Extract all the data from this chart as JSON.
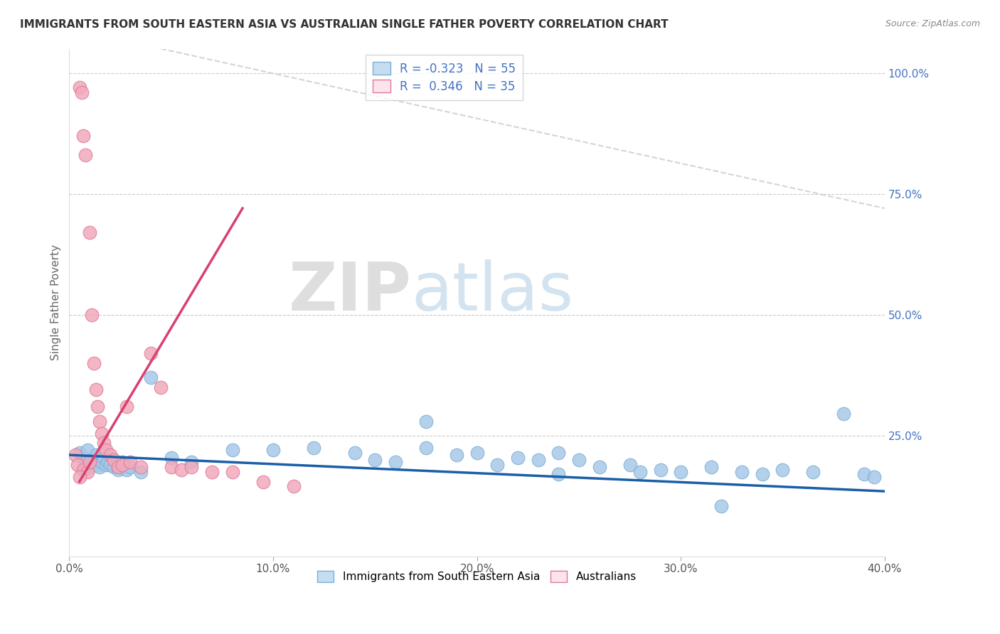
{
  "title": "IMMIGRANTS FROM SOUTH EASTERN ASIA VS AUSTRALIAN SINGLE FATHER POVERTY CORRELATION CHART",
  "source": "Source: ZipAtlas.com",
  "ylabel": "Single Father Poverty",
  "xlim": [
    0.0,
    0.4
  ],
  "ylim": [
    0.0,
    1.05
  ],
  "xtick_labels": [
    "0.0%",
    "10.0%",
    "20.0%",
    "30.0%",
    "40.0%"
  ],
  "xtick_vals": [
    0.0,
    0.1,
    0.2,
    0.3,
    0.4
  ],
  "ytick_right_labels": [
    "25.0%",
    "50.0%",
    "75.0%",
    "100.0%"
  ],
  "ytick_right_vals": [
    0.25,
    0.5,
    0.75,
    1.0
  ],
  "blue_color": "#a8c8e8",
  "blue_edge": "#7bafd4",
  "blue_fill": "#c5ddf0",
  "pink_color": "#f0aabb",
  "pink_edge": "#e07898",
  "pink_fill": "#fce4ec",
  "blue_line_color": "#1a5fa8",
  "pink_line_color": "#d94070",
  "ref_line_color": "#d0d0d0",
  "R_blue": -0.323,
  "N_blue": 55,
  "R_pink": 0.346,
  "N_pink": 35,
  "legend_label_blue": "Immigrants from South Eastern Asia",
  "legend_label_pink": "Australians",
  "watermark_zip": "ZIP",
  "watermark_atlas": "atlas",
  "blue_line_x0": 0.0,
  "blue_line_y0": 0.21,
  "blue_line_x1": 0.4,
  "blue_line_y1": 0.135,
  "pink_line_x0": 0.005,
  "pink_line_y0": 0.155,
  "pink_line_x1": 0.085,
  "pink_line_y1": 0.72,
  "ref_line_x0": 0.045,
  "ref_line_y0": 1.05,
  "ref_line_x1": 0.4,
  "ref_line_y1": 0.72,
  "blue_x": [
    0.005,
    0.007,
    0.008,
    0.009,
    0.01,
    0.011,
    0.012,
    0.013,
    0.014,
    0.015,
    0.016,
    0.017,
    0.018,
    0.019,
    0.02,
    0.022,
    0.024,
    0.025,
    0.026,
    0.028,
    0.03,
    0.035,
    0.04,
    0.05,
    0.06,
    0.08,
    0.1,
    0.12,
    0.14,
    0.15,
    0.16,
    0.175,
    0.19,
    0.2,
    0.21,
    0.22,
    0.23,
    0.24,
    0.25,
    0.26,
    0.275,
    0.29,
    0.3,
    0.315,
    0.33,
    0.34,
    0.35,
    0.365,
    0.38,
    0.39,
    0.395,
    0.28,
    0.175,
    0.32,
    0.24
  ],
  "blue_y": [
    0.215,
    0.205,
    0.195,
    0.22,
    0.185,
    0.2,
    0.195,
    0.21,
    0.19,
    0.185,
    0.195,
    0.205,
    0.19,
    0.195,
    0.19,
    0.185,
    0.18,
    0.185,
    0.195,
    0.18,
    0.185,
    0.175,
    0.37,
    0.205,
    0.195,
    0.22,
    0.22,
    0.225,
    0.215,
    0.2,
    0.195,
    0.225,
    0.21,
    0.215,
    0.19,
    0.205,
    0.2,
    0.215,
    0.2,
    0.185,
    0.19,
    0.18,
    0.175,
    0.185,
    0.175,
    0.17,
    0.18,
    0.175,
    0.295,
    0.17,
    0.165,
    0.175,
    0.28,
    0.105,
    0.17
  ],
  "pink_x": [
    0.003,
    0.004,
    0.005,
    0.006,
    0.007,
    0.007,
    0.008,
    0.009,
    0.01,
    0.01,
    0.011,
    0.012,
    0.013,
    0.014,
    0.015,
    0.016,
    0.017,
    0.018,
    0.02,
    0.022,
    0.024,
    0.026,
    0.028,
    0.03,
    0.035,
    0.04,
    0.045,
    0.05,
    0.055,
    0.06,
    0.07,
    0.08,
    0.095,
    0.11,
    0.005
  ],
  "pink_y": [
    0.21,
    0.19,
    0.97,
    0.96,
    0.87,
    0.18,
    0.83,
    0.175,
    0.195,
    0.67,
    0.5,
    0.4,
    0.345,
    0.31,
    0.28,
    0.255,
    0.235,
    0.22,
    0.21,
    0.2,
    0.185,
    0.19,
    0.31,
    0.195,
    0.185,
    0.42,
    0.35,
    0.185,
    0.18,
    0.185,
    0.175,
    0.175,
    0.155,
    0.145,
    0.165
  ]
}
